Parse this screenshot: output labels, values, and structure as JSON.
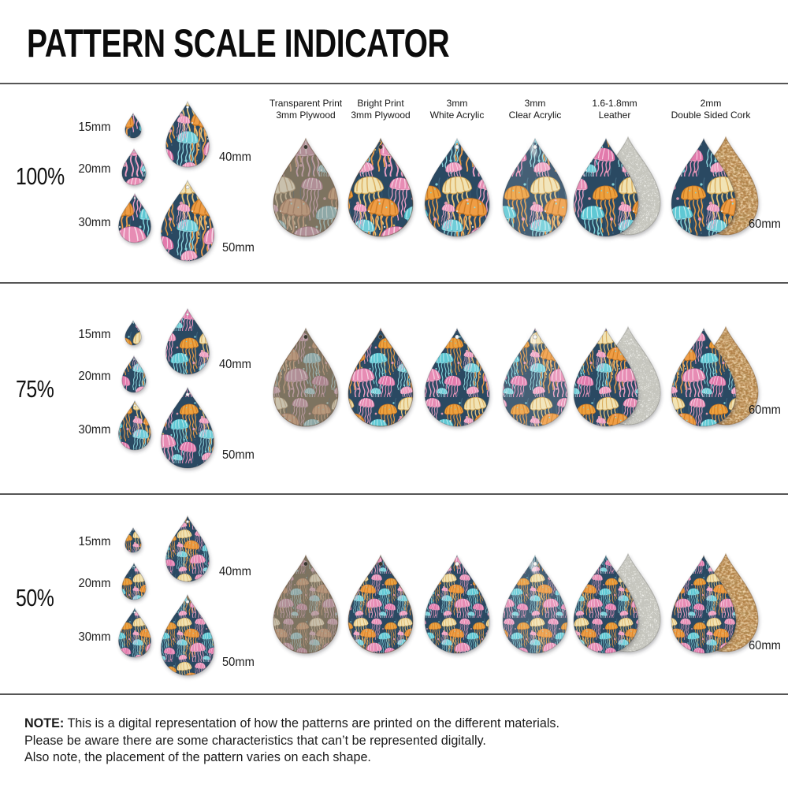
{
  "title": "PATTERN SCALE INDICATOR",
  "rows": [
    {
      "scale_label": "100%",
      "scale": 1.0
    },
    {
      "scale_label": "75%",
      "scale": 0.75
    },
    {
      "scale_label": "50%",
      "scale": 0.5
    }
  ],
  "sizes": [
    {
      "label": "15mm",
      "mm": 15
    },
    {
      "label": "20mm",
      "mm": 20
    },
    {
      "label": "30mm",
      "mm": 30
    },
    {
      "label": "40mm",
      "mm": 40
    },
    {
      "label": "50mm",
      "mm": 50
    }
  ],
  "large_size_label": "60mm",
  "materials": [
    {
      "line1": "Transparent Print",
      "line2": "3mm Plywood",
      "finish": "transparent-plywood"
    },
    {
      "line1": "Bright Print",
      "line2": "3mm Plywood",
      "finish": "bright-plywood"
    },
    {
      "line1": "3mm",
      "line2": "White Acrylic",
      "finish": "white-acrylic"
    },
    {
      "line1": "3mm",
      "line2": "Clear Acrylic",
      "finish": "clear-acrylic"
    },
    {
      "line1": "1.6-1.8mm",
      "line2": "Leather",
      "finish": "leather"
    },
    {
      "line1": "2mm",
      "line2": "Double Sided Cork",
      "finish": "cork"
    }
  ],
  "note": {
    "label": "NOTE:",
    "line1": "This is a digital representation of how the patterns are printed on the different materials.",
    "line2": "Please be aware there are some characteristics that can’t be represented digitally.",
    "line3": "Also note, the placement of the pattern varies on each shape."
  },
  "pattern": {
    "name": "jellyfish",
    "background": "#2b4962",
    "wood_background": "#7c7263",
    "jelly_colors": [
      "#f2e3b8",
      "#eea23e",
      "#e78cb4",
      "#5ec8d4"
    ],
    "suede_color": "#cbcbc4",
    "cork_color": "#bf9258"
  }
}
